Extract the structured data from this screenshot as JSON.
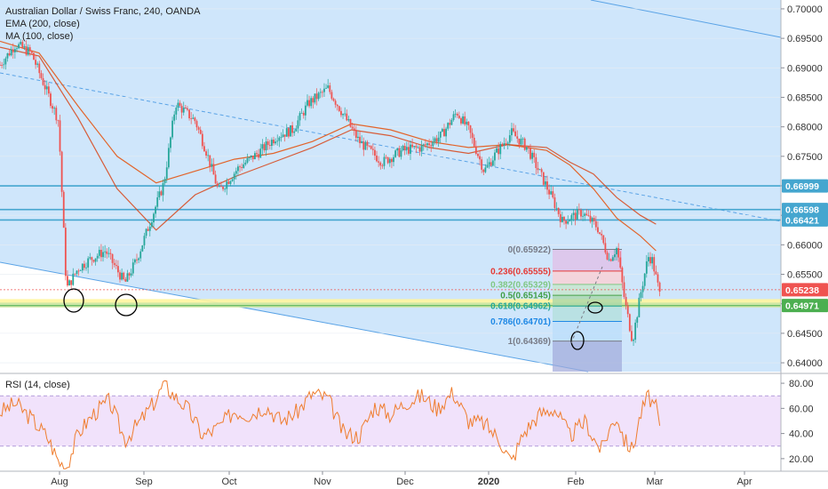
{
  "header": {
    "title": "Australian Dollar / Swiss Franc, 240, OANDA",
    "ema_label": "EMA (200, close)",
    "ma_label": "MA (100, close)"
  },
  "rsi_panel": {
    "label": "RSI (14, close)"
  },
  "colors": {
    "candle_up": "#26a69a",
    "candle_down": "#ef5350",
    "channel_fill": "#cfe6fb",
    "horizontal_line": "#45a6cf",
    "ema_line": "#e2642a",
    "ma_line": "#e2642a",
    "rsi_line": "#ef7d2e",
    "rsi_band": "#f1e2fb",
    "yellow_zone": "#fff59d",
    "green_zone": "#c8e6a6",
    "current_price": "#ef5350"
  },
  "chart_data": {
    "type": "line",
    "price_axis": {
      "ticks": [
        "0.70000",
        "0.69500",
        "0.69000",
        "0.68500",
        "0.68000",
        "0.67500",
        "0.67000",
        "0.66500",
        "0.66000",
        "0.65500",
        "0.65000",
        "0.64500",
        "0.64000"
      ],
      "ylim": [
        0.6385,
        0.7015
      ]
    },
    "rsi_axis": {
      "ticks": [
        "80.00",
        "60.00",
        "40.00",
        "20.00"
      ],
      "ylim": [
        10,
        85
      ],
      "band": [
        30,
        70
      ]
    },
    "time_axis": {
      "labels": [
        "Aug",
        "Sep",
        "Oct",
        "Nov",
        "Dec",
        "2020",
        "Feb",
        "Mar",
        "Apr"
      ]
    },
    "price_labels": [
      {
        "text": "0.66999",
        "value": 0.66999,
        "color": "#45a6cf"
      },
      {
        "text": "0.66598",
        "value": 0.66598,
        "color": "#45a6cf"
      },
      {
        "text": "0.66421",
        "value": 0.66421,
        "color": "#45a6cf"
      },
      {
        "text": "0.65238",
        "value": 0.65238,
        "color": "#ef5350"
      },
      {
        "text": "0.64971",
        "value": 0.64971,
        "color": "#4caf50"
      }
    ],
    "fibonacci": [
      {
        "label": "0(0.65922)",
        "value": 0.65922,
        "color": "#787b86"
      },
      {
        "label": "0.236(0.65555)",
        "value": 0.65555,
        "color": "#e53935"
      },
      {
        "label": "0.382(0.65329)",
        "value": 0.65329,
        "color": "#81c784"
      },
      {
        "label": "0.5(0.65145)",
        "value": 0.65145,
        "color": "#43a047"
      },
      {
        "label": "0.618(0.64962)",
        "value": 0.64962,
        "color": "#26a69a"
      },
      {
        "label": "0.786(0.64701)",
        "value": 0.64701,
        "color": "#1e88e5"
      },
      {
        "label": "1(0.64369)",
        "value": 0.64369,
        "color": "#787b86"
      }
    ],
    "price_path": [
      [
        0,
        0.6905
      ],
      [
        0.02,
        0.694
      ],
      [
        0.04,
        0.6925
      ],
      [
        0.06,
        0.686
      ],
      [
        0.075,
        0.681
      ],
      [
        0.085,
        0.6525
      ],
      [
        0.1,
        0.656
      ],
      [
        0.115,
        0.6575
      ],
      [
        0.135,
        0.659
      ],
      [
        0.16,
        0.6535
      ],
      [
        0.175,
        0.6575
      ],
      [
        0.19,
        0.663
      ],
      [
        0.21,
        0.6705
      ],
      [
        0.225,
        0.684
      ],
      [
        0.25,
        0.681
      ],
      [
        0.265,
        0.6755
      ],
      [
        0.28,
        0.669
      ],
      [
        0.305,
        0.673
      ],
      [
        0.33,
        0.6755
      ],
      [
        0.355,
        0.6785
      ],
      [
        0.375,
        0.6795
      ],
      [
        0.395,
        0.684
      ],
      [
        0.42,
        0.6865
      ],
      [
        0.44,
        0.682
      ],
      [
        0.46,
        0.6775
      ],
      [
        0.49,
        0.674
      ],
      [
        0.515,
        0.676
      ],
      [
        0.54,
        0.6765
      ],
      [
        0.565,
        0.6785
      ],
      [
        0.585,
        0.6825
      ],
      [
        0.6,
        0.6795
      ],
      [
        0.62,
        0.6725
      ],
      [
        0.635,
        0.6755
      ],
      [
        0.655,
        0.679
      ],
      [
        0.675,
        0.6765
      ],
      [
        0.69,
        0.6725
      ],
      [
        0.705,
        0.6685
      ],
      [
        0.72,
        0.664
      ],
      [
        0.745,
        0.6655
      ],
      [
        0.765,
        0.663
      ],
      [
        0.78,
        0.6575
      ],
      [
        0.79,
        0.6595
      ],
      [
        0.8,
        0.6505
      ],
      [
        0.81,
        0.6437
      ],
      [
        0.82,
        0.6515
      ],
      [
        0.83,
        0.658
      ],
      [
        0.835,
        0.6575
      ],
      [
        0.845,
        0.6515
      ]
    ],
    "ema_200": [
      [
        0,
        0.6945
      ],
      [
        0.05,
        0.6925
      ],
      [
        0.1,
        0.6835
      ],
      [
        0.15,
        0.675
      ],
      [
        0.2,
        0.6705
      ],
      [
        0.25,
        0.6725
      ],
      [
        0.3,
        0.6745
      ],
      [
        0.35,
        0.6755
      ],
      [
        0.4,
        0.6775
      ],
      [
        0.45,
        0.6805
      ],
      [
        0.5,
        0.6795
      ],
      [
        0.55,
        0.6775
      ],
      [
        0.6,
        0.6765
      ],
      [
        0.65,
        0.677
      ],
      [
        0.7,
        0.676
      ],
      [
        0.73,
        0.6735
      ],
      [
        0.76,
        0.6695
      ],
      [
        0.79,
        0.6645
      ],
      [
        0.82,
        0.6615
      ],
      [
        0.84,
        0.659
      ]
    ],
    "ma_100": [
      [
        0,
        0.6935
      ],
      [
        0.05,
        0.692
      ],
      [
        0.1,
        0.6815
      ],
      [
        0.15,
        0.6695
      ],
      [
        0.2,
        0.6625
      ],
      [
        0.25,
        0.6685
      ],
      [
        0.3,
        0.6715
      ],
      [
        0.35,
        0.674
      ],
      [
        0.4,
        0.6765
      ],
      [
        0.45,
        0.6795
      ],
      [
        0.5,
        0.6785
      ],
      [
        0.55,
        0.6765
      ],
      [
        0.6,
        0.6755
      ],
      [
        0.65,
        0.677
      ],
      [
        0.7,
        0.6765
      ],
      [
        0.73,
        0.674
      ],
      [
        0.76,
        0.672
      ],
      [
        0.79,
        0.668
      ],
      [
        0.82,
        0.665
      ],
      [
        0.84,
        0.6635
      ]
    ],
    "rsi_path": [
      [
        0,
        57
      ],
      [
        0.02,
        64
      ],
      [
        0.04,
        52
      ],
      [
        0.06,
        38
      ],
      [
        0.075,
        18
      ],
      [
        0.085,
        13
      ],
      [
        0.1,
        40
      ],
      [
        0.12,
        56
      ],
      [
        0.14,
        66
      ],
      [
        0.16,
        35
      ],
      [
        0.18,
        50
      ],
      [
        0.2,
        67
      ],
      [
        0.21,
        80
      ],
      [
        0.22,
        72
      ],
      [
        0.24,
        60
      ],
      [
        0.26,
        38
      ],
      [
        0.28,
        45
      ],
      [
        0.3,
        58
      ],
      [
        0.32,
        55
      ],
      [
        0.34,
        62
      ],
      [
        0.36,
        50
      ],
      [
        0.38,
        57
      ],
      [
        0.4,
        72
      ],
      [
        0.42,
        68
      ],
      [
        0.44,
        40
      ],
      [
        0.46,
        38
      ],
      [
        0.48,
        62
      ],
      [
        0.5,
        55
      ],
      [
        0.52,
        65
      ],
      [
        0.54,
        70
      ],
      [
        0.56,
        60
      ],
      [
        0.58,
        73
      ],
      [
        0.6,
        50
      ],
      [
        0.62,
        48
      ],
      [
        0.64,
        35
      ],
      [
        0.655,
        17
      ],
      [
        0.67,
        40
      ],
      [
        0.69,
        55
      ],
      [
        0.71,
        60
      ],
      [
        0.73,
        38
      ],
      [
        0.75,
        50
      ],
      [
        0.76,
        36
      ],
      [
        0.77,
        27
      ],
      [
        0.78,
        43
      ],
      [
        0.79,
        54
      ],
      [
        0.8,
        34
      ],
      [
        0.81,
        27
      ],
      [
        0.82,
        55
      ],
      [
        0.83,
        70
      ],
      [
        0.84,
        60
      ],
      [
        0.845,
        44
      ]
    ]
  }
}
